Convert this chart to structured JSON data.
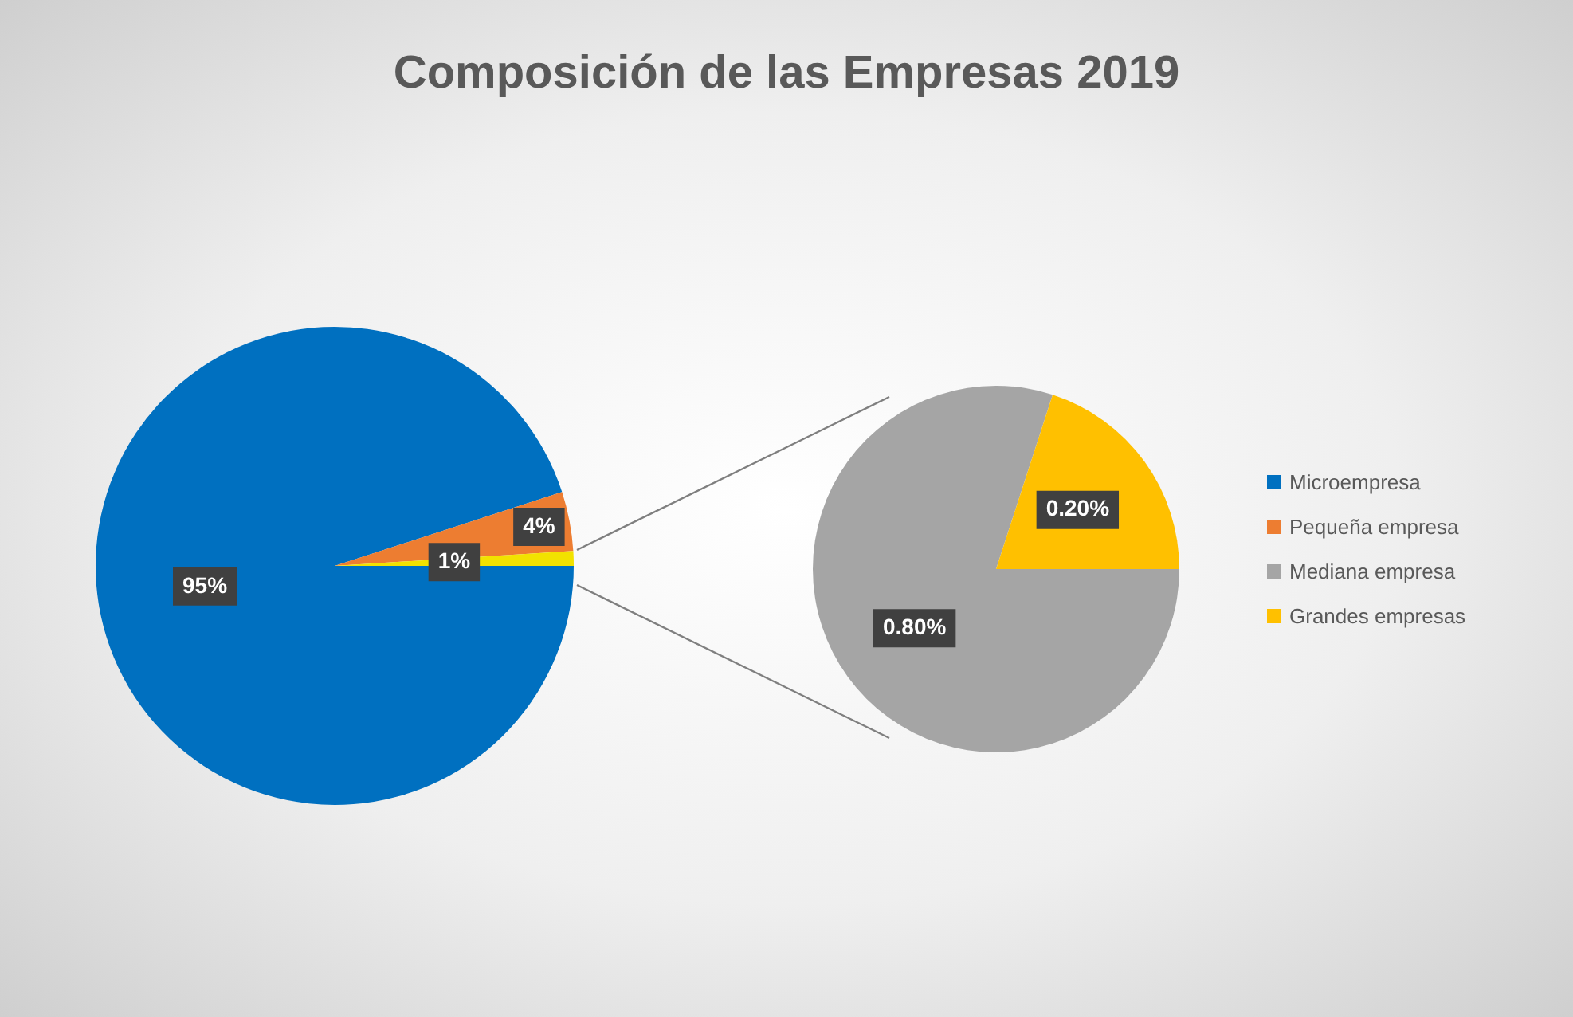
{
  "chart_data": [
    {
      "type": "pie",
      "title": "Composición de las Empresas 2019",
      "categories": [
        "Microempresa",
        "Pequeña empresa",
        null
      ],
      "values": [
        95,
        4,
        1
      ],
      "colors": [
        "#0070c0",
        "#ed7d31",
        "#f2e200"
      ],
      "value_labels": [
        "95%",
        "4%",
        "1%"
      ],
      "legend": "right"
    },
    {
      "type": "pie",
      "categories": [
        "Mediana empresa",
        "Grandes empresas"
      ],
      "values": [
        0.8,
        0.2
      ],
      "colors": [
        "#a5a5a5",
        "#ffc000"
      ],
      "value_labels": [
        "0.80%",
        "0.20%"
      ],
      "legend": "right"
    }
  ]
}
